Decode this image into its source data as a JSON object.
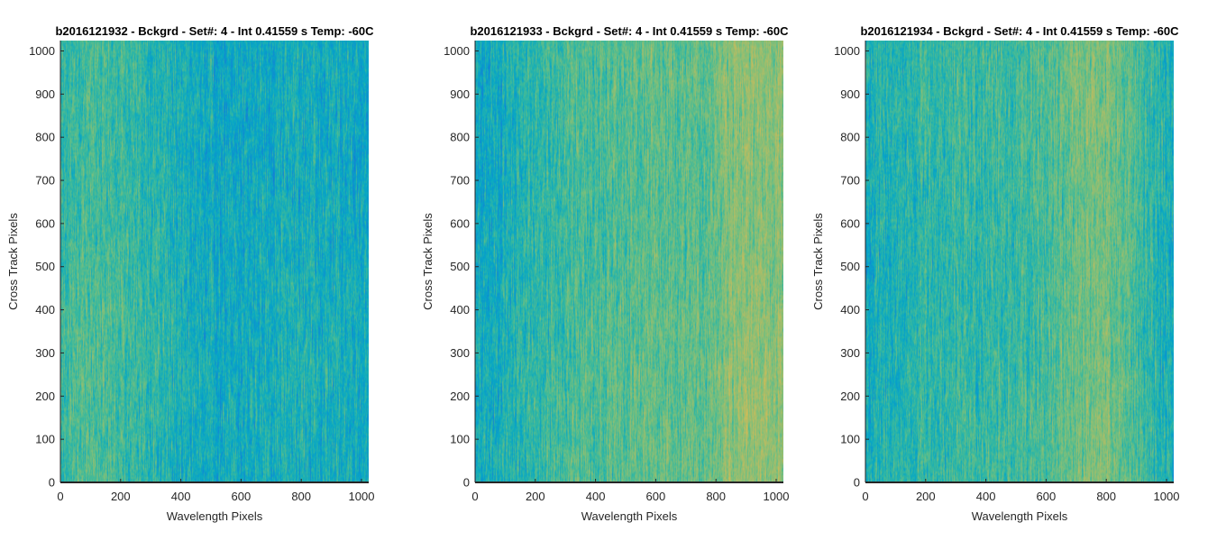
{
  "chart_data": [
    {
      "type": "heatmap",
      "title": "b2016121932 - Bckgrd - Set#: 4 - Int 0.41559 s Temp: -60C",
      "xlabel": "Wavelength Pixels",
      "ylabel": "Cross Track Pixels",
      "xlim": [
        0,
        1024
      ],
      "ylim": [
        0,
        1024
      ],
      "xticks": [
        0,
        200,
        400,
        600,
        800,
        1000
      ],
      "yticks": [
        0,
        100,
        200,
        300,
        400,
        500,
        600,
        700,
        800,
        900,
        1000
      ],
      "grid": false,
      "colormap": "parula",
      "column_profile": {
        "x": [
          0,
          100,
          200,
          300,
          400,
          500,
          600,
          700,
          800,
          900,
          1024
        ],
        "value": [
          0.52,
          0.55,
          0.53,
          0.5,
          0.46,
          0.43,
          0.43,
          0.45,
          0.46,
          0.45,
          0.44
        ]
      }
    },
    {
      "type": "heatmap",
      "title": "b2016121933 - Bckgrd - Set#: 4 - Int 0.41559 s Temp: -60C",
      "xlabel": "Wavelength Pixels",
      "ylabel": "Cross Track Pixels",
      "xlim": [
        0,
        1024
      ],
      "ylim": [
        0,
        1024
      ],
      "xticks": [
        0,
        200,
        400,
        600,
        800,
        1000
      ],
      "yticks": [
        0,
        100,
        200,
        300,
        400,
        500,
        600,
        700,
        800,
        900,
        1000
      ],
      "grid": false,
      "colormap": "parula",
      "column_profile": {
        "x": [
          0,
          100,
          200,
          300,
          400,
          500,
          600,
          700,
          800,
          820,
          900,
          1024
        ],
        "value": [
          0.42,
          0.46,
          0.5,
          0.54,
          0.55,
          0.56,
          0.58,
          0.57,
          0.58,
          0.63,
          0.65,
          0.66
        ]
      }
    },
    {
      "type": "heatmap",
      "title": "b2016121934 - Bckgrd - Set#: 4 - Int 0.41559 s Temp: -60C",
      "xlabel": "Wavelength Pixels",
      "ylabel": "Cross Track Pixels",
      "xlim": [
        0,
        1024
      ],
      "ylim": [
        0,
        1024
      ],
      "xticks": [
        0,
        200,
        400,
        600,
        800,
        1000
      ],
      "yticks": [
        0,
        100,
        200,
        300,
        400,
        500,
        600,
        700,
        800,
        900,
        1000
      ],
      "grid": false,
      "colormap": "parula",
      "column_profile": {
        "x": [
          0,
          100,
          200,
          300,
          400,
          500,
          600,
          700,
          800,
          900,
          1000,
          1024
        ],
        "value": [
          0.45,
          0.48,
          0.5,
          0.51,
          0.52,
          0.52,
          0.55,
          0.6,
          0.62,
          0.54,
          0.46,
          0.44
        ]
      }
    }
  ]
}
